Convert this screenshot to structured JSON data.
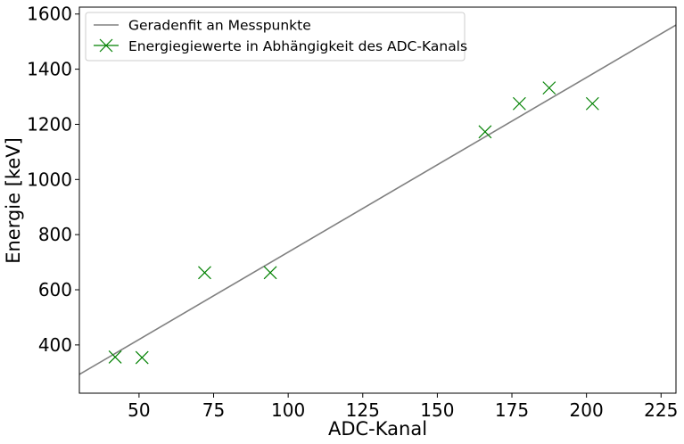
{
  "chart_data": {
    "type": "scatter",
    "xlabel": "ADC-Kanal",
    "ylabel": "Energie [keV]",
    "xlim": [
      30,
      230
    ],
    "ylim": [
      225,
      1625
    ],
    "xticks": [
      50,
      75,
      100,
      125,
      150,
      175,
      200,
      225
    ],
    "yticks": [
      400,
      600,
      800,
      1000,
      1200,
      1400,
      1600
    ],
    "grid": false,
    "legend_position": "top-left",
    "series": [
      {
        "name": "Geradenfit an Messpunkte",
        "kind": "line",
        "color": "#808080",
        "x": [
          30,
          230
        ],
        "y": [
          293,
          1560
        ]
      },
      {
        "name": "Energiegiewerte in Abhängigkeit des ADC-Kanals",
        "kind": "scatter",
        "marker": "x",
        "color": "#008000",
        "x": [
          42,
          51,
          72,
          94,
          166,
          177.5,
          187.5,
          202
        ],
        "y": [
          356,
          354,
          662,
          662,
          1173,
          1275,
          1332,
          1275
        ]
      }
    ]
  }
}
